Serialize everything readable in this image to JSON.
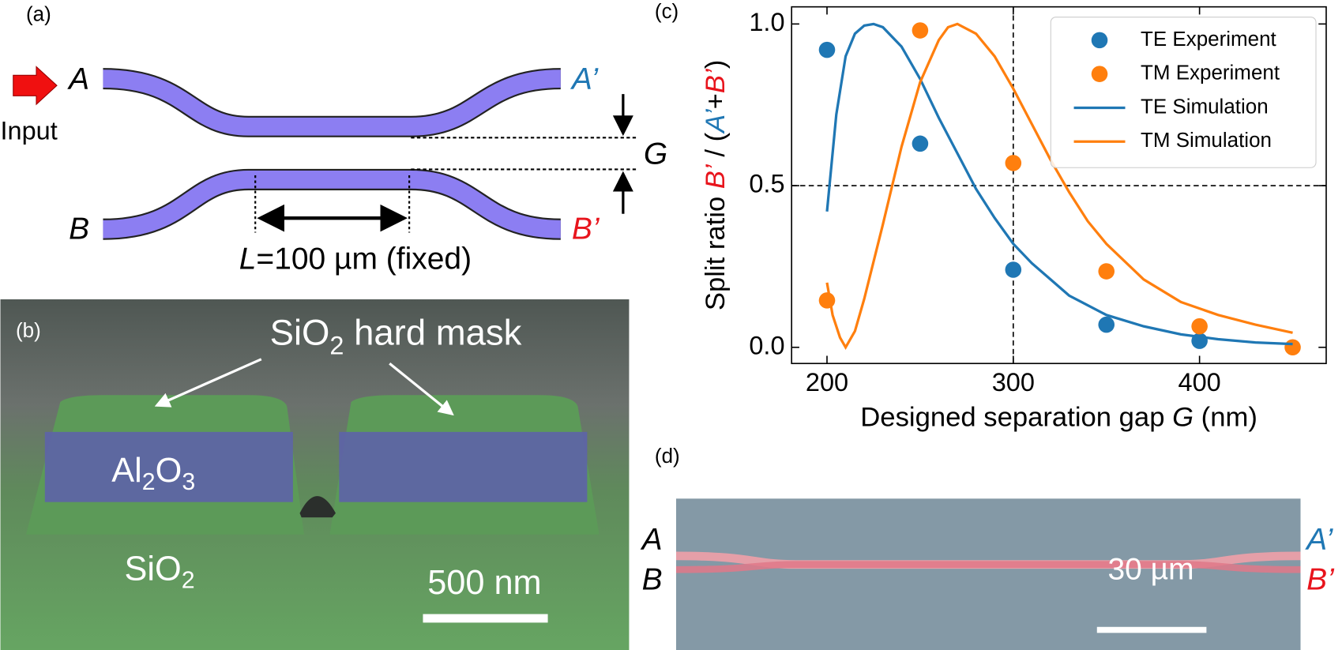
{
  "panel_labels": [
    "(a)",
    "(b)",
    "(c)",
    "(d)"
  ],
  "panel_a": {
    "input_port": "A",
    "cross_port": "A’",
    "bar_input": "B",
    "out_port": "B’",
    "input_label": "Input",
    "gap_label": "G",
    "length_label": [
      "L",
      "=100 µm (fixed)"
    ]
  },
  "panel_b": {
    "hard_mask_label": [
      "SiO",
      "2",
      " hard mask"
    ],
    "core_label": [
      "Al",
      "2",
      "O",
      "3"
    ],
    "substrate_label": [
      "SiO",
      "2"
    ],
    "scale_bar": "500 nm"
  },
  "panel_d": {
    "left_top": "A",
    "left_bottom": "B",
    "right_top": "A’",
    "right_bottom": "B’",
    "scale_bar": "30 µm"
  },
  "chart_data": {
    "type": "line",
    "ylabel": [
      {
        "text": "Split ratio ",
        "color": "#000000"
      },
      {
        "text": "B’",
        "color": "#e8141c",
        "italic": true
      },
      {
        "text": " / (",
        "color": "#000000"
      },
      {
        "text": "A’",
        "color": "#1f77b4",
        "italic": true
      },
      {
        "text": "+",
        "color": "#000000"
      },
      {
        "text": "B’",
        "color": "#e8141c",
        "italic": true
      },
      {
        "text": ")",
        "color": "#000000"
      }
    ],
    "xlabel": [
      {
        "text": "Designed separation gap ",
        "color": "#000000"
      },
      {
        "text": "G",
        "color": "#000000",
        "italic": true
      },
      {
        "text": " (nm)",
        "color": "#000000"
      }
    ],
    "xlim": [
      181,
      468
    ],
    "ylim": [
      -0.05,
      1.053
    ],
    "xticks": [
      200,
      300,
      400
    ],
    "yticks": [
      {
        "value": 0,
        "label": "0.0"
      },
      {
        "value": 0.5,
        "label": "0.5"
      },
      {
        "value": 1,
        "label": "1.0"
      }
    ],
    "reference_lines": {
      "x": [
        300
      ],
      "y": [
        0.5
      ]
    },
    "legend": "upper right",
    "series": [
      {
        "name": "TE Experiment",
        "color": "#1f77b4",
        "mode": "markers",
        "x": [
          200,
          250,
          300,
          350,
          400
        ],
        "values": [
          0.92,
          0.63,
          0.24,
          0.07,
          0.02
        ]
      },
      {
        "name": "TM Experiment",
        "color": "#ff7f0e",
        "mode": "markers",
        "x": [
          200,
          250,
          300,
          350,
          400,
          450
        ],
        "values": [
          0.145,
          0.98,
          0.57,
          0.235,
          0.065,
          0.0
        ]
      },
      {
        "name": "TE Simulation",
        "color": "#1f77b4",
        "mode": "line",
        "x": [
          200,
          205,
          210,
          215,
          220,
          225,
          230,
          240,
          250,
          260,
          270,
          280,
          290,
          300,
          310,
          320,
          330,
          340,
          350,
          370,
          390,
          410,
          430,
          450
        ],
        "values": [
          0.42,
          0.72,
          0.9,
          0.97,
          0.995,
          1.0,
          0.99,
          0.93,
          0.83,
          0.71,
          0.6,
          0.49,
          0.4,
          0.32,
          0.26,
          0.21,
          0.16,
          0.13,
          0.1,
          0.065,
          0.04,
          0.025,
          0.015,
          0.01
        ]
      },
      {
        "name": "TM Simulation",
        "color": "#ff7f0e",
        "mode": "line",
        "x": [
          200,
          203,
          207,
          210,
          215,
          220,
          230,
          240,
          250,
          260,
          265,
          270,
          280,
          290,
          300,
          310,
          320,
          330,
          340,
          350,
          370,
          390,
          410,
          430,
          450
        ],
        "values": [
          0.2,
          0.1,
          0.03,
          0.0,
          0.05,
          0.15,
          0.38,
          0.62,
          0.82,
          0.95,
          0.99,
          1.0,
          0.97,
          0.9,
          0.8,
          0.69,
          0.58,
          0.48,
          0.39,
          0.32,
          0.21,
          0.14,
          0.1,
          0.07,
          0.045
        ]
      }
    ]
  }
}
